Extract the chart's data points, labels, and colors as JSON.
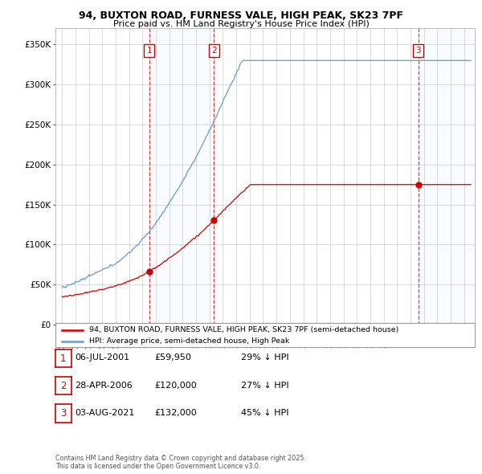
{
  "title1": "94, BUXTON ROAD, FURNESS VALE, HIGH PEAK, SK23 7PF",
  "title2": "Price paid vs. HM Land Registry's House Price Index (HPI)",
  "background_color": "#ffffff",
  "plot_bg_color": "#ffffff",
  "grid_color": "#cccccc",
  "sale_color": "#cc0000",
  "hpi_color": "#6699cc",
  "shade_color": "#ddeeff",
  "dashed_line_color": "#cc0000",
  "transactions": [
    {
      "label": "1",
      "date_num": 2001.51,
      "price": 59950
    },
    {
      "label": "2",
      "date_num": 2006.32,
      "price": 120000
    },
    {
      "label": "3",
      "date_num": 2021.59,
      "price": 132000
    }
  ],
  "legend_entries": [
    "94, BUXTON ROAD, FURNESS VALE, HIGH PEAK, SK23 7PF (semi-detached house)",
    "HPI: Average price, semi-detached house, High Peak"
  ],
  "table_rows": [
    {
      "num": "1",
      "date": "06-JUL-2001",
      "price": "£59,950",
      "pct": "29% ↓ HPI"
    },
    {
      "num": "2",
      "date": "28-APR-2006",
      "price": "£120,000",
      "pct": "27% ↓ HPI"
    },
    {
      "num": "3",
      "date": "03-AUG-2021",
      "price": "£132,000",
      "pct": "45% ↓ HPI"
    }
  ],
  "footer": "Contains HM Land Registry data © Crown copyright and database right 2025.\nThis data is licensed under the Open Government Licence v3.0.",
  "ylim": [
    0,
    370000
  ],
  "yticks": [
    0,
    50000,
    100000,
    150000,
    200000,
    250000,
    300000,
    350000
  ],
  "ytick_labels": [
    "£0",
    "£50K",
    "£100K",
    "£150K",
    "£200K",
    "£250K",
    "£300K",
    "£350K"
  ],
  "xlim_start": 1994.5,
  "xlim_end": 2025.8,
  "fig_width": 6.0,
  "fig_height": 5.9,
  "dpi": 100
}
